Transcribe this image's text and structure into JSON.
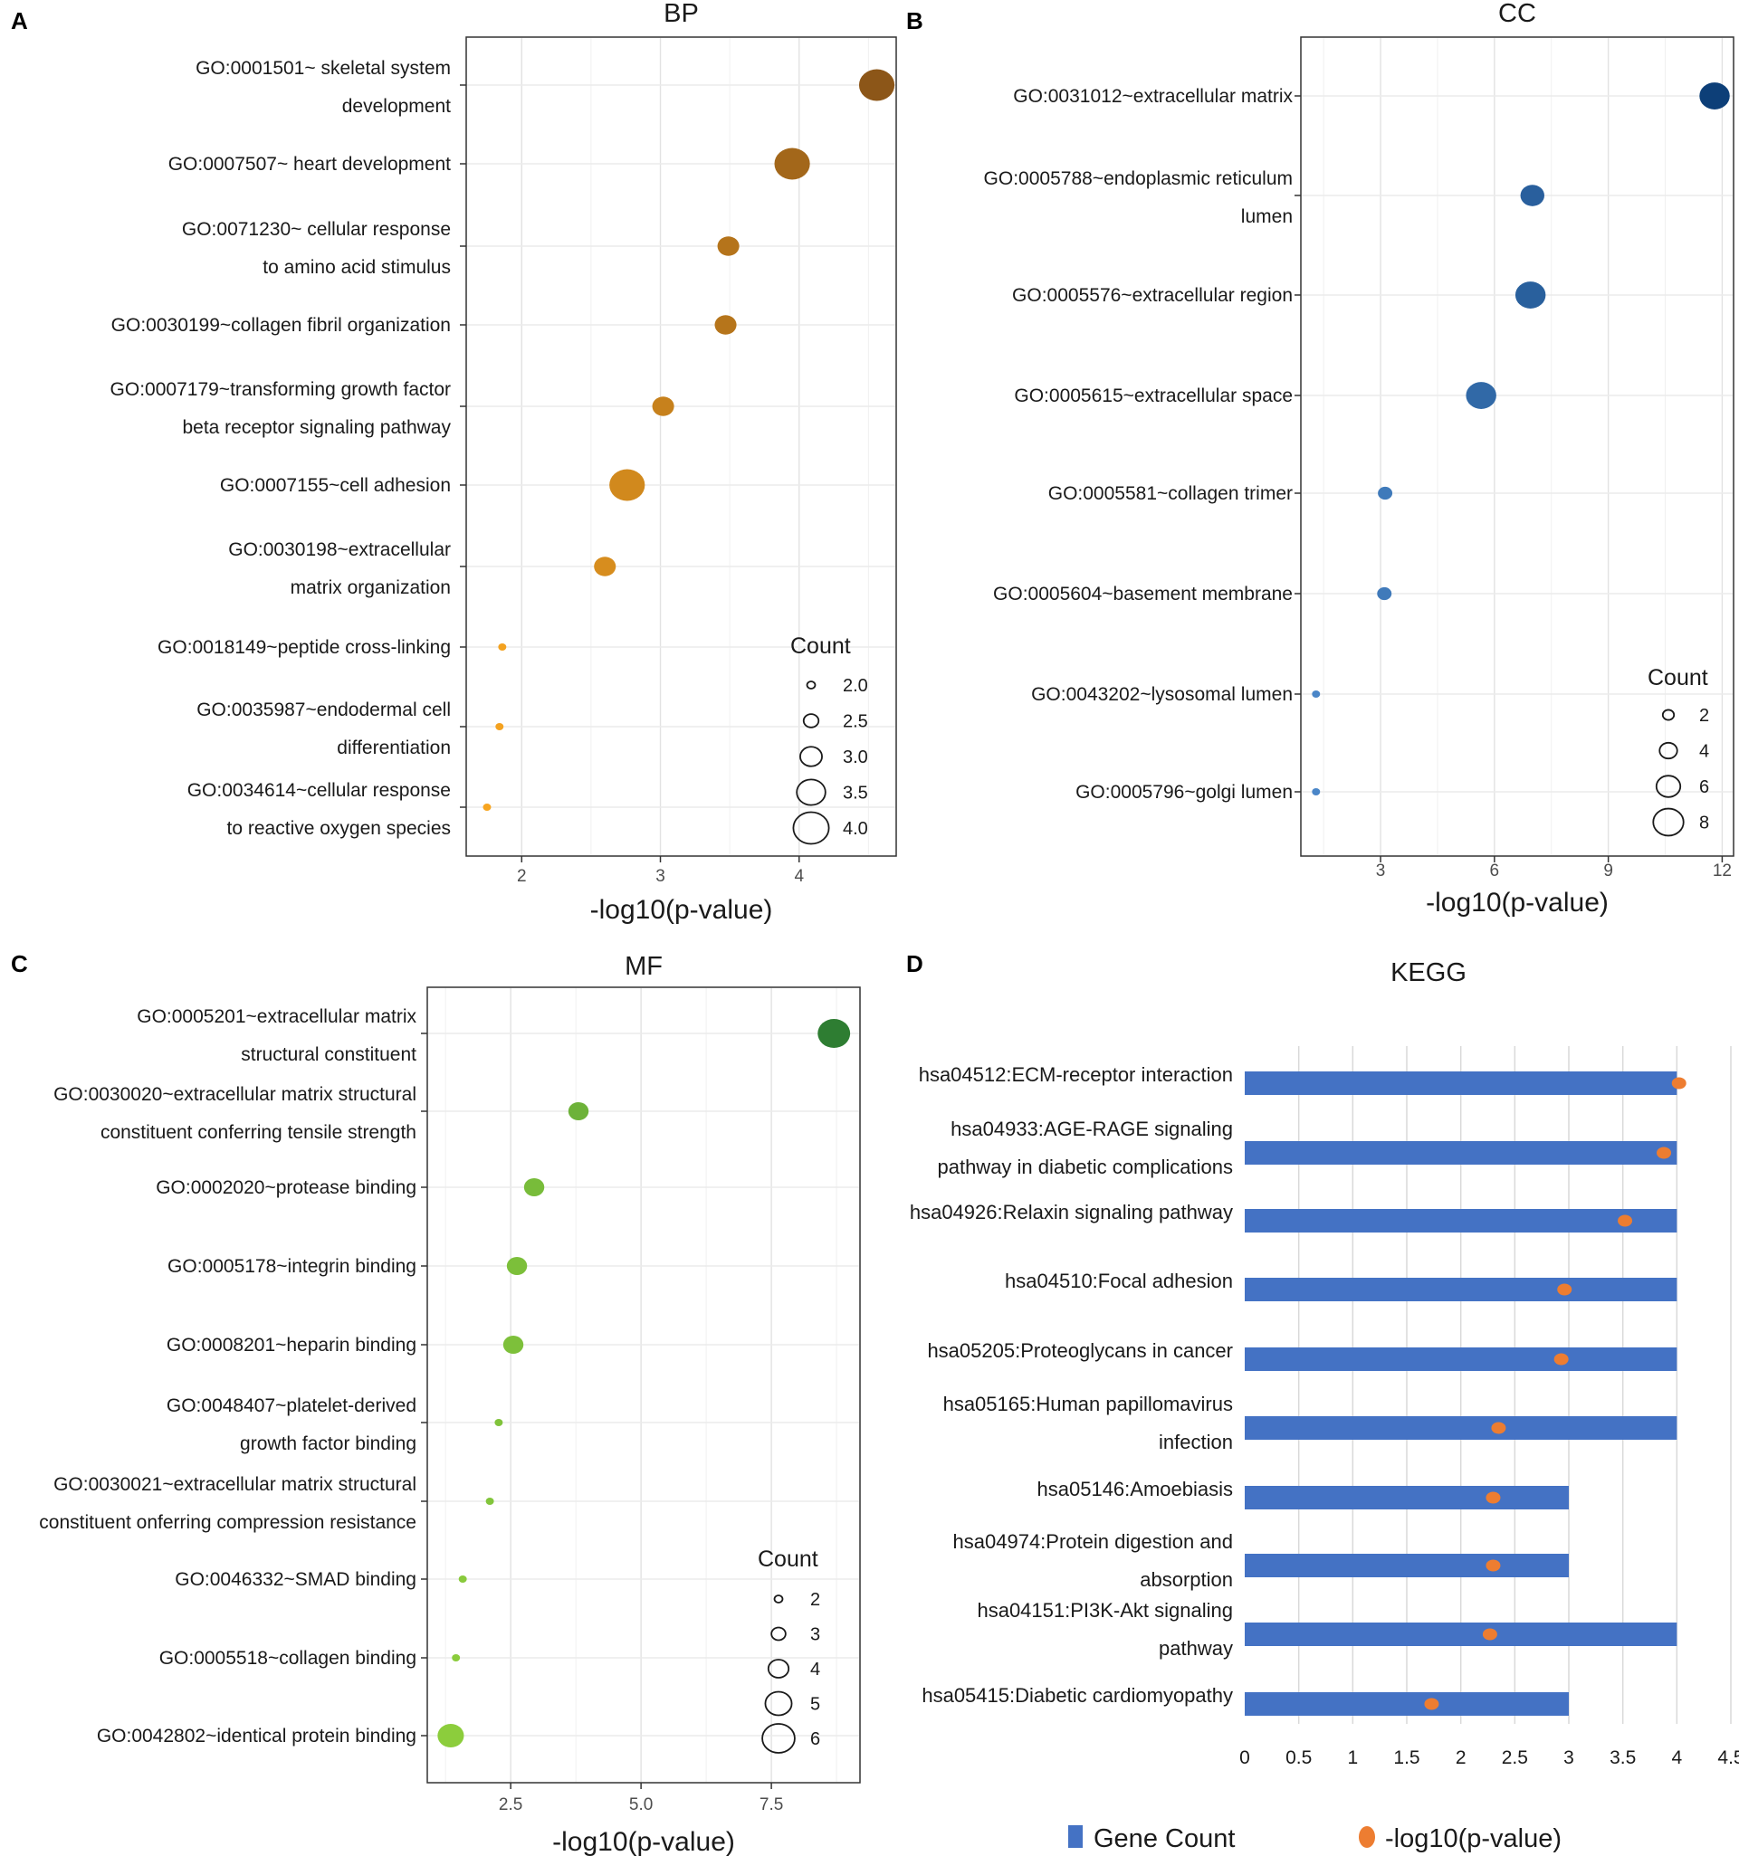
{
  "figure": {
    "panel_letters": [
      "A",
      "B",
      "C",
      "D"
    ]
  },
  "chart_data": [
    {
      "panel": "A",
      "type": "scatter",
      "title": "BP",
      "xlabel": "-log10(p-value)",
      "ylabel": "",
      "xlim": [
        1.6,
        4.7
      ],
      "xticks": [
        2,
        3,
        4
      ],
      "legend": {
        "title": "Count",
        "position": "bottom-right",
        "values": [
          "2.0",
          "2.5",
          "3.0",
          "3.5",
          "4.0"
        ],
        "sizes": [
          2.0,
          2.5,
          3.0,
          3.5,
          4.0
        ],
        "size_range": [
          2,
          4
        ]
      },
      "color_low": "#f7a520",
      "color_high": "#8c5618",
      "points": [
        {
          "lines": [
            "GO:0001501~ skeletal system",
            "development"
          ],
          "x": 4.56,
          "count": 4
        },
        {
          "lines": [
            "GO:0007507~ heart development"
          ],
          "x": 3.95,
          "count": 4
        },
        {
          "lines": [
            "GO:0071230~ cellular response",
            "to amino acid stimulus"
          ],
          "x": 3.49,
          "count": 3
        },
        {
          "lines": [
            "GO:0030199~collagen fibril organization"
          ],
          "x": 3.47,
          "count": 3
        },
        {
          "lines": [
            "GO:0007179~transforming growth factor",
            "beta receptor signaling pathway"
          ],
          "x": 3.02,
          "count": 3
        },
        {
          "lines": [
            "GO:0007155~cell adhesion"
          ],
          "x": 2.76,
          "count": 4
        },
        {
          "lines": [
            "GO:0030198~extracellular",
            "matrix organization"
          ],
          "x": 2.6,
          "count": 3
        },
        {
          "lines": [
            "GO:0018149~peptide cross-linking"
          ],
          "x": 1.86,
          "count": 2
        },
        {
          "lines": [
            "GO:0035987~endodermal cell",
            "differentiation"
          ],
          "x": 1.84,
          "count": 2
        },
        {
          "lines": [
            "GO:0034614~cellular response",
            "to reactive oxygen species"
          ],
          "x": 1.75,
          "count": 2
        }
      ]
    },
    {
      "panel": "B",
      "type": "scatter",
      "title": "CC",
      "xlabel": "-log10(p-value)",
      "ylabel": "",
      "xlim": [
        0.9,
        12.3
      ],
      "xticks": [
        3,
        6,
        9,
        12
      ],
      "legend": {
        "title": "Count",
        "position": "bottom-right",
        "values": [
          "2",
          "4",
          "6",
          "8"
        ],
        "sizes": [
          2,
          4,
          6,
          8
        ],
        "size_range": [
          1,
          9
        ]
      },
      "color_low": "#4a86c8",
      "color_high": "#0d3f78",
      "points": [
        {
          "lines": [
            "GO:0031012~extracellular matrix"
          ],
          "x": 11.8,
          "count": 8
        },
        {
          "lines": [
            "GO:0005788~endoplasmic reticulum",
            "lumen"
          ],
          "x": 7.0,
          "count": 6
        },
        {
          "lines": [
            "GO:0005576~extracellular region"
          ],
          "x": 6.95,
          "count": 8
        },
        {
          "lines": [
            "GO:0005615~extracellular space"
          ],
          "x": 5.65,
          "count": 8
        },
        {
          "lines": [
            "GO:0005581~collagen trimer"
          ],
          "x": 3.12,
          "count": 3
        },
        {
          "lines": [
            "GO:0005604~basement membrane"
          ],
          "x": 3.1,
          "count": 3
        },
        {
          "lines": [
            "GO:0043202~lysosomal lumen"
          ],
          "x": 1.3,
          "count": 1
        },
        {
          "lines": [
            "GO:0005796~golgi lumen"
          ],
          "x": 1.3,
          "count": 1
        }
      ]
    },
    {
      "panel": "C",
      "type": "scatter",
      "title": "MF",
      "xlabel": "-log10(p-value)",
      "ylabel": "",
      "xlim": [
        0.9,
        9.2
      ],
      "xticks": [
        2.5,
        5.0,
        7.5
      ],
      "xtick_labels": [
        "2.5",
        "5.0",
        "7.5"
      ],
      "legend": {
        "title": "Count",
        "position": "bottom-right",
        "values": [
          "2",
          "3",
          "4",
          "5",
          "6"
        ],
        "sizes": [
          2,
          3,
          4,
          5,
          6
        ],
        "size_range": [
          2,
          6
        ]
      },
      "color_low": "#8ccd3c",
      "color_high": "#2e7d32",
      "points": [
        {
          "lines": [
            "GO:0005201~extracellular matrix",
            "structural constituent"
          ],
          "x": 8.7,
          "count": 6
        },
        {
          "lines": [
            "GO:0030020~extracellular matrix structural",
            "constituent conferring tensile strength"
          ],
          "x": 3.8,
          "count": 4
        },
        {
          "lines": [
            "GO:0002020~protease binding"
          ],
          "x": 2.95,
          "count": 4
        },
        {
          "lines": [
            "GO:0005178~integrin binding"
          ],
          "x": 2.62,
          "count": 4
        },
        {
          "lines": [
            "GO:0008201~heparin binding"
          ],
          "x": 2.55,
          "count": 4
        },
        {
          "lines": [
            "GO:0048407~platelet-derived",
            "growth factor binding"
          ],
          "x": 2.27,
          "count": 2
        },
        {
          "lines": [
            "GO:0030021~extracellular matrix structural",
            "constituent onferring compression resistance"
          ],
          "x": 2.1,
          "count": 2
        },
        {
          "lines": [
            "GO:0046332~SMAD binding"
          ],
          "x": 1.58,
          "count": 2
        },
        {
          "lines": [
            "GO:0005518~collagen binding"
          ],
          "x": 1.45,
          "count": 2
        },
        {
          "lines": [
            "GO:0042802~identical protein binding"
          ],
          "x": 1.35,
          "count": 5
        }
      ]
    },
    {
      "panel": "D",
      "type": "bar",
      "title": "KEGG",
      "xlabel": "",
      "ylabel": "",
      "xlim": [
        0,
        4.5
      ],
      "xticks": [
        0,
        0.5,
        1,
        1.5,
        2,
        2.5,
        3,
        3.5,
        4,
        4.5
      ],
      "xtick_labels": [
        "0",
        "0.5",
        "1",
        "1.5",
        "2",
        "2.5",
        "3",
        "3.5",
        "4",
        "4.5"
      ],
      "bar_color": "#4472c4",
      "dot_color": "#ed7d31",
      "legend": {
        "position": "bottom",
        "labels": [
          "Gene Count",
          "-log10(p-value)"
        ]
      },
      "series": [
        {
          "name": "Gene Count",
          "type": "bar",
          "values": [
            4,
            4,
            4,
            4,
            4,
            4,
            3,
            3,
            4,
            3
          ]
        },
        {
          "name": "-log10(p-value)",
          "type": "scatter",
          "values": [
            4.02,
            3.88,
            3.52,
            2.96,
            2.93,
            2.35,
            2.3,
            2.3,
            2.27,
            1.73
          ]
        }
      ],
      "categories": [
        [
          "hsa04512:ECM-receptor interaction"
        ],
        [
          "hsa04933:AGE-RAGE signaling",
          "pathway in diabetic complications"
        ],
        [
          "hsa04926:Relaxin signaling pathway"
        ],
        [
          "hsa04510:Focal adhesion"
        ],
        [
          "hsa05205:Proteoglycans in cancer"
        ],
        [
          "hsa05165:Human papillomavirus",
          "infection"
        ],
        [
          "hsa05146:Amoebiasis"
        ],
        [
          "hsa04974:Protein digestion and",
          "absorption"
        ],
        [
          "hsa04151:PI3K-Akt signaling",
          "pathway"
        ],
        [
          "hsa05415:Diabetic cardiomyopathy"
        ]
      ]
    }
  ]
}
